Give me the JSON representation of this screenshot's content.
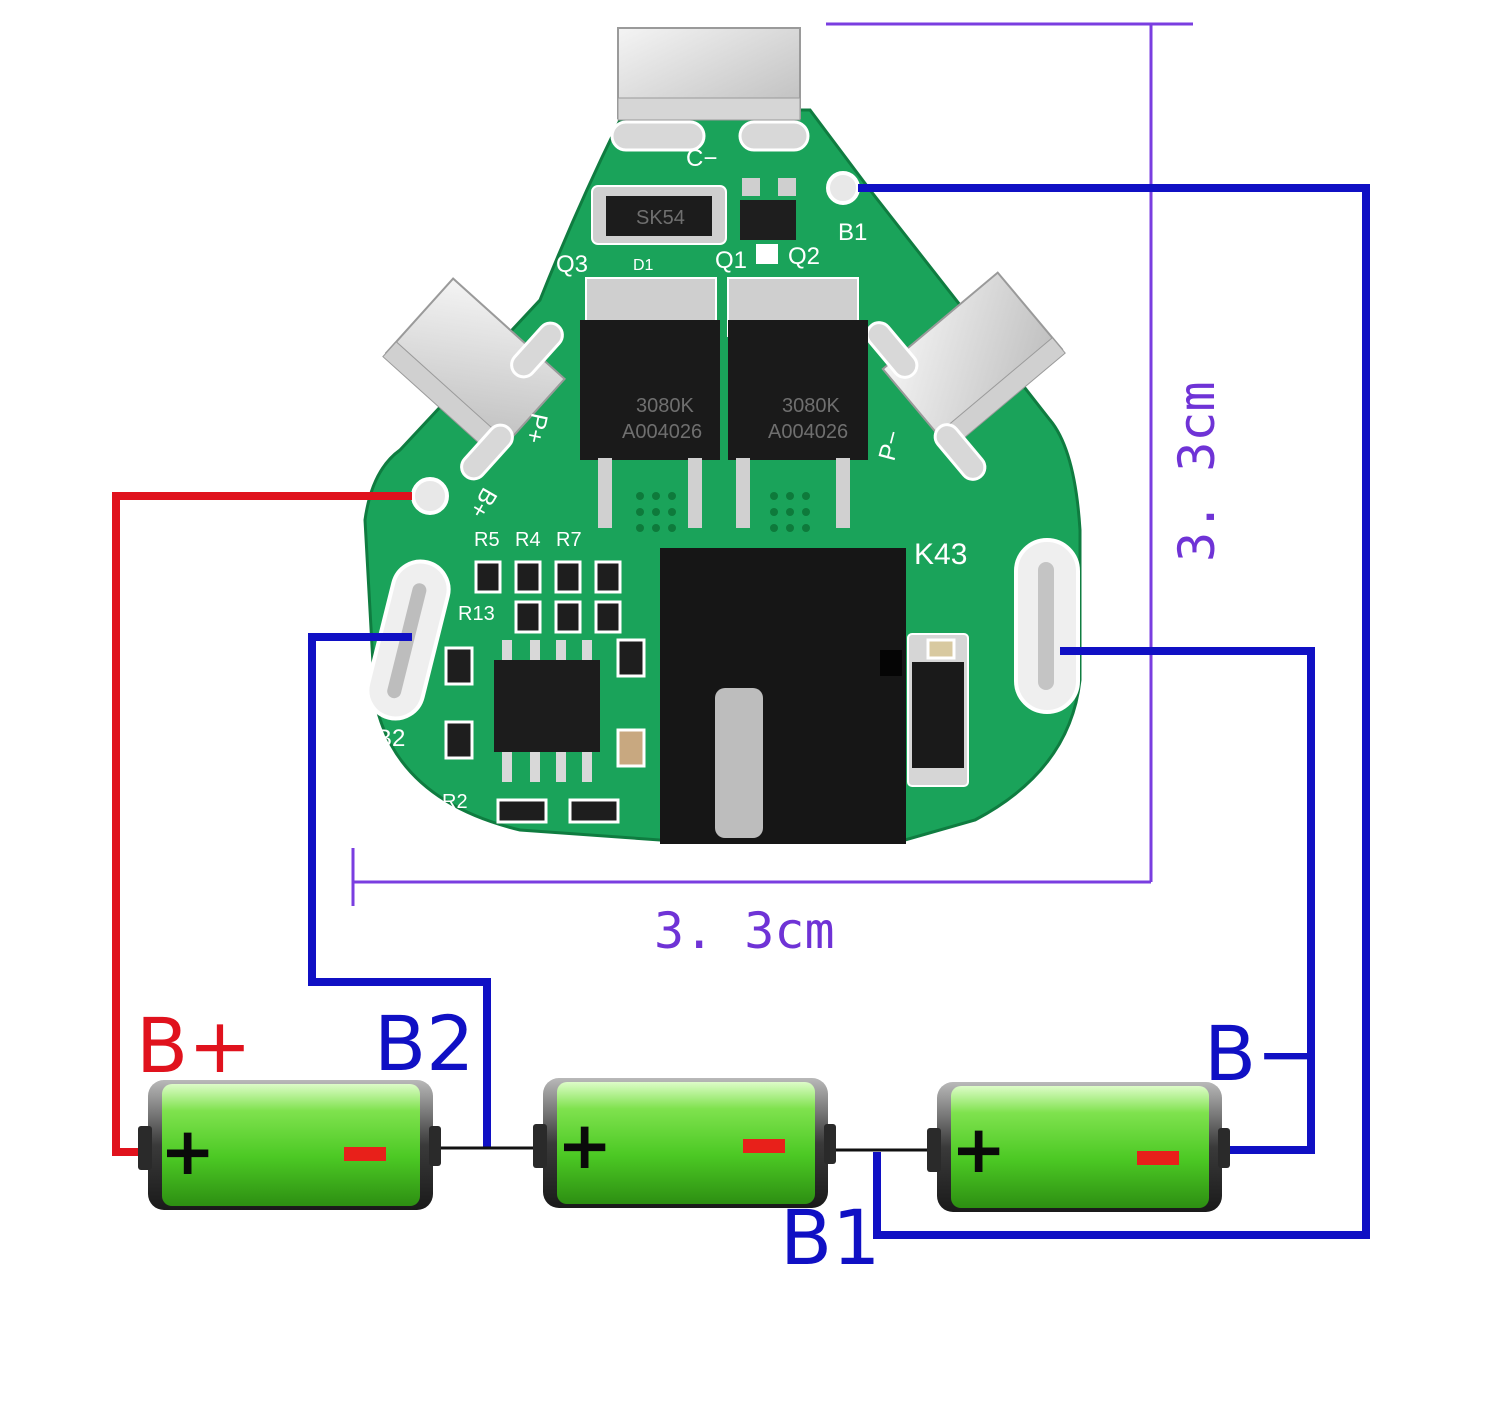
{
  "colors": {
    "pcb": "#1aa35a",
    "wire_positive": "#e0121d",
    "wire_negative": "#1010c4",
    "dimension_line": "#7a3ee0",
    "battery_body": "#4ed22c",
    "terminal_pad": "#e8e8e8",
    "mosfet": "#1a1a1a"
  },
  "board": {
    "labels": {
      "c_minus": "C−",
      "b1": "B1",
      "q3": "Q3",
      "d1": "D1",
      "q1": "Q1",
      "q2": "Q2",
      "p_plus": "P+",
      "p_minus": "P−",
      "b_plus": "B+",
      "r5": "R5",
      "r4": "R4",
      "r7": "R7",
      "r13": "R13",
      "r2": "R2",
      "b2": "B2",
      "k43": "K43"
    },
    "mosfet_marks": {
      "top": "3080K",
      "bottom": "A004026"
    }
  },
  "dimensions": {
    "width": "3. 3cm",
    "height": "3. 3cm"
  },
  "wiring": {
    "b_plus": "B+",
    "b2": "B2",
    "b1": "B1",
    "b_minus": "B−"
  },
  "batteries": [
    {
      "plus": "+",
      "minus": "−"
    },
    {
      "plus": "+",
      "minus": "−"
    },
    {
      "plus": "+",
      "minus": "−"
    }
  ]
}
